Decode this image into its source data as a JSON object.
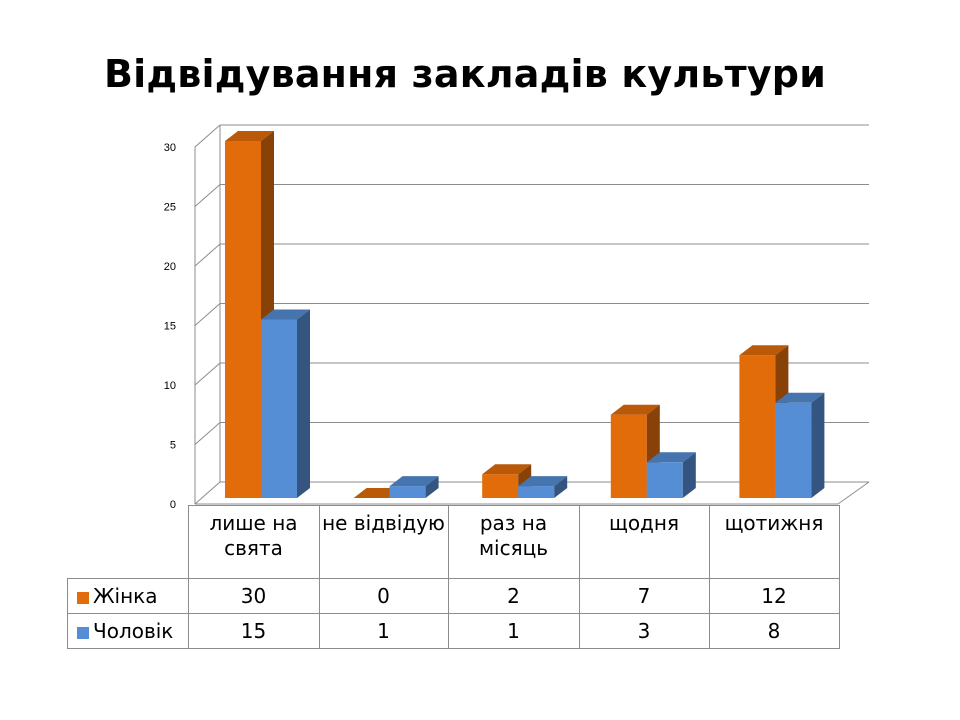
{
  "chart_data": {
    "type": "bar",
    "title": "Відвідування закладів культури",
    "categories": [
      "лише на свята",
      "не відвідую",
      "раз на місяць",
      "щодня",
      "щотижня"
    ],
    "series": [
      {
        "name": "Жінка",
        "values": [
          30,
          0,
          2,
          7,
          12
        ],
        "color": "#E36C0A"
      },
      {
        "name": "Чоловік",
        "values": [
          15,
          1,
          1,
          3,
          8
        ],
        "color": "#558ED5"
      }
    ],
    "ylim": [
      0,
      30
    ],
    "yticks": [
      0,
      5,
      10,
      15,
      20,
      25,
      30
    ],
    "grid": true,
    "legend": "data-table",
    "style": "3d-clustered-column"
  }
}
